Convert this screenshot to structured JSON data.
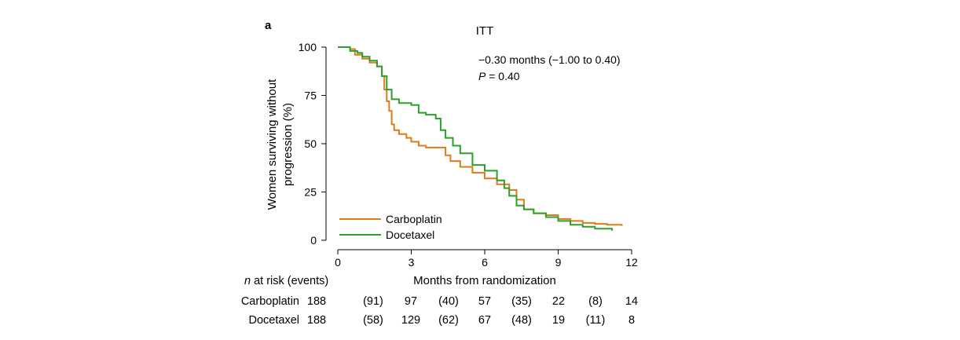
{
  "panel_label": "a",
  "chart_data": {
    "type": "line",
    "title": "ITT",
    "xlabel": "Months from randomization",
    "ylabel_line1": "Women surviving without",
    "ylabel_line2": "progression (%)",
    "xlim": [
      0,
      12
    ],
    "ylim": [
      0,
      100
    ],
    "xticks": [
      0,
      3,
      6,
      9,
      12
    ],
    "yticks": [
      0,
      25,
      50,
      75,
      100
    ],
    "xtick_labels": [
      "0",
      "3",
      "6",
      "9",
      "12"
    ],
    "ytick_labels": [
      "0",
      "25",
      "50",
      "75",
      "100"
    ],
    "grid": false,
    "legend_position": "bottom-left",
    "annotations": {
      "line1": "−0.30 months (−1.00 to 0.40)",
      "line2_italic": "P",
      "line2_rest": " = 0.40"
    },
    "series": [
      {
        "name": "Carboplatin",
        "color": "#e07b1a",
        "x": [
          0,
          0.5,
          0.7,
          1.0,
          1.3,
          1.6,
          1.8,
          1.9,
          2.0,
          2.1,
          2.2,
          2.3,
          2.5,
          2.8,
          3.0,
          3.3,
          3.6,
          4.0,
          4.4,
          4.6,
          5.0,
          5.5,
          6.0,
          6.5,
          7.0,
          7.3,
          7.6,
          8.0,
          8.5,
          9.0,
          9.5,
          10.0,
          10.5,
          11.0,
          11.6
        ],
        "y": [
          100,
          99,
          96,
          94,
          92,
          90,
          85,
          78,
          72,
          67,
          60,
          57,
          55,
          53,
          51,
          49,
          48,
          48,
          44,
          41,
          38,
          35,
          32,
          29,
          26,
          21,
          16,
          14,
          13,
          11,
          10,
          9,
          8.5,
          8,
          7.5
        ]
      },
      {
        "name": "Docetaxel",
        "color": "#2ca02c",
        "x": [
          0,
          0.5,
          0.8,
          1.0,
          1.3,
          1.6,
          1.8,
          2.0,
          2.2,
          2.5,
          3.0,
          3.3,
          3.6,
          3.9,
          4.0,
          4.2,
          4.4,
          4.7,
          5.0,
          5.5,
          6.0,
          6.5,
          6.8,
          7.0,
          7.3,
          7.6,
          8.0,
          8.5,
          9.0,
          9.5,
          10.0,
          10.5,
          11.2
        ],
        "y": [
          100,
          98,
          97,
          95,
          93,
          90,
          85,
          78,
          73,
          71,
          70,
          66,
          65,
          65,
          63,
          57,
          53,
          49,
          45,
          39,
          36,
          31,
          27,
          23,
          18,
          16,
          14,
          12,
          10,
          8,
          7,
          6,
          5
        ]
      }
    ],
    "risk_table": {
      "header": "n at risk (events)",
      "header_italic": "n",
      "header_rest": " at risk (events)",
      "rows": [
        {
          "name": "Carboplatin",
          "values": [
            "188",
            "(91)",
            "97",
            "(40)",
            "57",
            "(35)",
            "22",
            "(8)",
            "14"
          ]
        },
        {
          "name": "Docetaxel",
          "values": [
            "188",
            "(58)",
            "129",
            "(62)",
            "67",
            "(48)",
            "19",
            "(11)",
            "8"
          ]
        }
      ]
    }
  }
}
